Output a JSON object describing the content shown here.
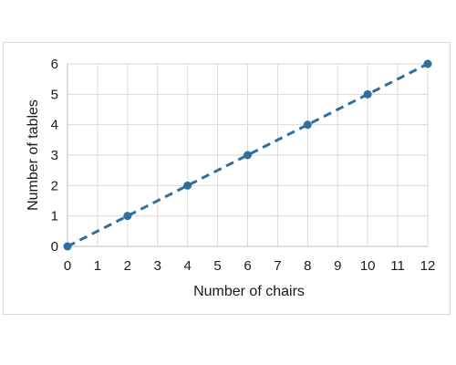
{
  "chart_data": {
    "type": "scatter",
    "xlabel": "Number of chairs",
    "ylabel": "Number of tables",
    "xlim": [
      0,
      12
    ],
    "ylim": [
      0,
      6
    ],
    "x_ticks": [
      0,
      1,
      2,
      3,
      4,
      5,
      6,
      7,
      8,
      9,
      10,
      11,
      12
    ],
    "y_ticks": [
      0,
      1,
      2,
      3,
      4,
      5,
      6
    ],
    "grid": true,
    "series": [
      {
        "x": [
          0,
          2,
          4,
          6,
          8,
          10,
          12
        ],
        "y": [
          0,
          1,
          2,
          3,
          4,
          5,
          6
        ],
        "color": "#2e6f9e",
        "line_style": "dashed"
      }
    ]
  }
}
